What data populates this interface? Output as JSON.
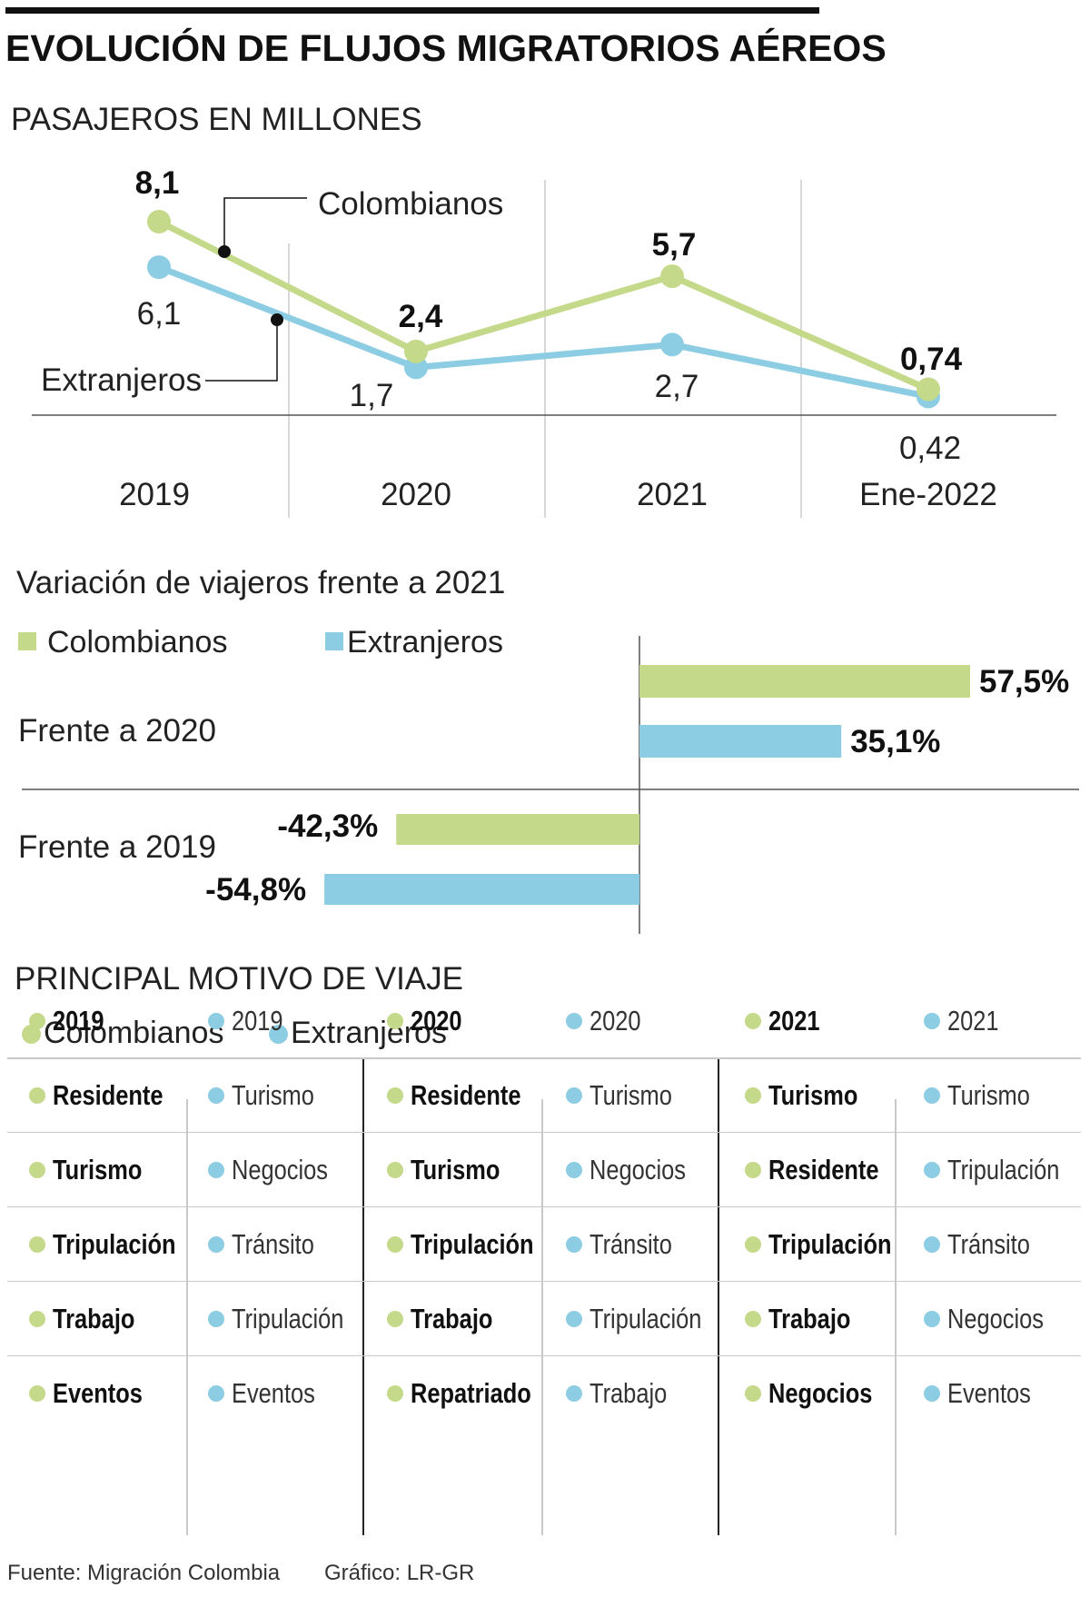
{
  "title": "EVOLUCIÓN DE FLUJOS MIGRATORIOS AÉREOS",
  "subtitle": "PASAJEROS EN MILLONES",
  "colors": {
    "colombianos": "#c5d98a",
    "extranjeros": "#8dcde3"
  },
  "chart_data": [
    {
      "type": "line",
      "title": "PASAJEROS EN MILLONES",
      "categories": [
        "2019",
        "2020",
        "2021",
        "Ene-2022"
      ],
      "series": [
        {
          "name": "Colombianos",
          "values": [
            8.1,
            2.4,
            5.7,
            0.74
          ],
          "labels": [
            "8,1",
            "2,4",
            "5,7",
            "0,74"
          ]
        },
        {
          "name": "Extranjeros",
          "values": [
            6.1,
            1.7,
            2.7,
            0.42
          ],
          "labels": [
            "6,1",
            "1,7",
            "2,7",
            "0,42"
          ]
        }
      ],
      "ylim": [
        0,
        9
      ]
    },
    {
      "type": "bar",
      "title": "Variación de viajeros frente a 2021",
      "categories": [
        "Frente a 2020",
        "Frente a 2019"
      ],
      "series": [
        {
          "name": "Colombianos",
          "values": [
            57.5,
            -42.3
          ],
          "labels": [
            "57,5%",
            "-42,3%"
          ]
        },
        {
          "name": "Extranjeros",
          "values": [
            35.1,
            -54.8
          ],
          "labels": [
            "35,1%",
            "-54,8%"
          ]
        }
      ],
      "xlim": [
        -60,
        60
      ]
    }
  ],
  "line_chart": {
    "series_label_colombianos": "Colombianos",
    "series_label_extranjeros": "Extranjeros"
  },
  "bar_chart": {
    "title": "Variación de viajeros frente a 2021",
    "legend": {
      "colombianos": "Colombianos",
      "extranjeros": "Extranjeros"
    }
  },
  "motives": {
    "title": "PRINCIPAL MOTIVO DE VIAJE",
    "legend": {
      "colombianos": "Colombianos",
      "extranjeros": "Extranjeros"
    },
    "columns": [
      {
        "group": "colombianos",
        "year": "2019",
        "items": [
          "Residente",
          "Turismo",
          "Tripulación",
          "Trabajo",
          "Eventos"
        ]
      },
      {
        "group": "extranjeros",
        "year": "2019",
        "items": [
          "Turismo",
          "Negocios",
          "Tránsito",
          "Tripulación",
          "Eventos"
        ]
      },
      {
        "group": "colombianos",
        "year": "2020",
        "items": [
          "Residente",
          "Turismo",
          "Tripulación",
          "Trabajo",
          "Repatriado"
        ]
      },
      {
        "group": "extranjeros",
        "year": "2020",
        "items": [
          "Turismo",
          "Negocios",
          "Tránsito",
          "Tripulación",
          "Trabajo"
        ]
      },
      {
        "group": "colombianos",
        "year": "2021",
        "items": [
          "Turismo",
          "Residente",
          "Tripulación",
          "Trabajo",
          "Negocios"
        ]
      },
      {
        "group": "extranjeros",
        "year": "2021",
        "items": [
          "Turismo",
          "Tripulación",
          "Tránsito",
          "Negocios",
          "Eventos"
        ]
      }
    ]
  },
  "footer": {
    "source": "Fuente: Migración Colombia",
    "credit": "Gráfico: LR-GR"
  }
}
